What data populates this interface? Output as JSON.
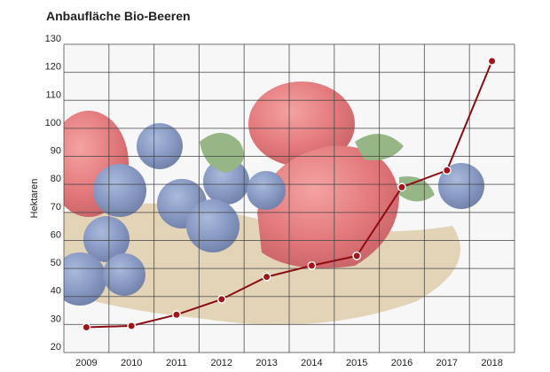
{
  "chart_data": {
    "type": "line",
    "title": "Anbaufläche Bio-Beeren",
    "ylabel": "Hektaren",
    "xlabel": "",
    "x": [
      "2009",
      "2010",
      "2011",
      "2012",
      "2013",
      "2014",
      "2015",
      "2016",
      "2017",
      "2018"
    ],
    "series": [
      {
        "values": [
          29,
          29.5,
          33.5,
          39,
          47,
          51,
          54.5,
          79,
          85,
          124
        ]
      }
    ],
    "ylim": [
      20,
      130
    ],
    "yticks": [
      20,
      30,
      40,
      50,
      60,
      70,
      80,
      90,
      100,
      110,
      120,
      130
    ],
    "grid": true,
    "legend": "none",
    "background": "photo of strawberries and blueberries on burlap",
    "colors": {
      "line": "#8b0d12",
      "marker": "#a3131a",
      "grid": "#444444"
    }
  }
}
